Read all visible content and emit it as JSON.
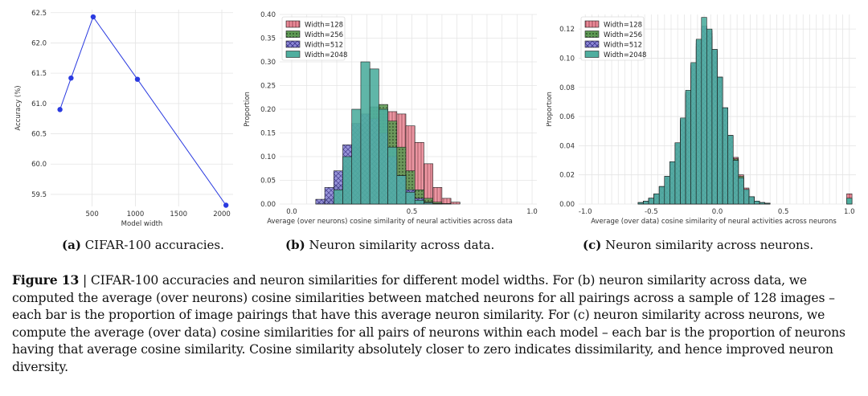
{
  "subcaptions": [
    {
      "tag": "(a)",
      "text": "CIFAR-100 accuracies."
    },
    {
      "tag": "(b)",
      "text": "Neuron similarity across data."
    },
    {
      "tag": "(c)",
      "text": "Neuron similarity across neurons."
    }
  ],
  "figure_caption": {
    "label": "Figure 13",
    "separator": " | ",
    "text": "CIFAR-100 accuracies and neuron similarities for different model widths. For (b) neuron similarity across data, we computed the average (over neurons) cosine similarities between matched neurons for all pairings across a sample of 128 images – each bar is the proportion of image pairings that have this average neuron similarity. For (c) neuron similarity across neurons, we compute the average (over data) cosine similarities for all pairs of neurons within each model – each bar is the proportion of neurons having that average cosine similarity. Cosine similarity absolutely closer to zero indicates dissimilarity, and hence improved neuron diversity."
  },
  "colors": {
    "line": "#2a3ae0",
    "w128": "#e98a97",
    "w256": "#5f9a55",
    "w512": "#8d88d6",
    "w2048": "#4fae9f"
  },
  "chart_data": [
    {
      "type": "line",
      "title": "",
      "xlabel": "Model width",
      "ylabel": "Accuracy (%)",
      "xlim": [
        20,
        2130
      ],
      "ylim": [
        59.3,
        62.55
      ],
      "xticks": [
        "500",
        "1000",
        "1500",
        "2000"
      ],
      "xtick_values": [
        500,
        1000,
        1500,
        2000
      ],
      "yticks": [
        "59.5",
        "60.0",
        "60.5",
        "61.0",
        "61.5",
        "62.0",
        "62.5"
      ],
      "ytick_values": [
        59.5,
        60.0,
        60.5,
        61.0,
        61.5,
        62.0,
        62.5
      ],
      "x": [
        128,
        256,
        512,
        1024,
        2048
      ],
      "y": [
        60.9,
        61.42,
        62.43,
        61.4,
        59.32
      ],
      "grid": true
    },
    {
      "type": "bar",
      "title": "",
      "xlabel": "Average (over neurons) cosine similarity of neural activities across data",
      "ylabel": "Proportion",
      "xlim": [
        -0.05,
        1.02
      ],
      "ylim": [
        0,
        0.4
      ],
      "xticks": [
        "0.0",
        "0.5",
        "1.0"
      ],
      "xtick_values": [
        0.0,
        0.5,
        1.0
      ],
      "yticks": [
        "0.00",
        "0.05",
        "0.10",
        "0.15",
        "0.20",
        "0.25",
        "0.30",
        "0.35",
        "0.40"
      ],
      "ytick_values": [
        0,
        0.05,
        0.1,
        0.15,
        0.2,
        0.25,
        0.3,
        0.35,
        0.4
      ],
      "bin_start": 0.1,
      "bin_width": 0.0375,
      "legend": "top-left",
      "series": [
        {
          "name": "Width=128",
          "values": [
            0,
            0.003,
            0.01,
            0.03,
            0.06,
            0.1,
            0.14,
            0.18,
            0.195,
            0.19,
            0.165,
            0.13,
            0.085,
            0.035,
            0.012,
            0.004,
            0,
            0,
            0.0
          ]
        },
        {
          "name": "Width=256",
          "values": [
            0.003,
            0.012,
            0.04,
            0.08,
            0.12,
            0.17,
            0.205,
            0.21,
            0.175,
            0.12,
            0.07,
            0.03,
            0.012,
            0.004,
            0.001,
            0,
            0,
            0,
            0.0
          ]
        },
        {
          "name": "Width=512",
          "values": [
            0.01,
            0.035,
            0.07,
            0.125,
            0.17,
            0.19,
            0.18,
            0.15,
            0.1,
            0.06,
            0.03,
            0.012,
            0.004,
            0.001,
            0,
            0,
            0,
            0,
            0.0
          ]
        },
        {
          "name": "Width=2048",
          "values": [
            0.0,
            0.0,
            0.03,
            0.1,
            0.2,
            0.3,
            0.285,
            0.2,
            0.12,
            0.06,
            0.025,
            0.008,
            0.003,
            0.001,
            0,
            0,
            0,
            0,
            0.0
          ]
        }
      ],
      "grid": true
    },
    {
      "type": "bar",
      "title": "",
      "xlabel": "Average (over data) cosine similarity of neural activities across neurons",
      "ylabel": "Proportion",
      "xlim": [
        -1.05,
        1.05
      ],
      "ylim": [
        0,
        0.13
      ],
      "xticks": [
        "-1.0",
        "-0.5",
        "0.0",
        "0.5",
        "1.0"
      ],
      "xtick_values": [
        -1.0,
        -0.5,
        0.0,
        0.5,
        1.0
      ],
      "yticks": [
        "0.00",
        "0.02",
        "0.04",
        "0.06",
        "0.08",
        "0.10",
        "0.12"
      ],
      "ytick_values": [
        0,
        0.02,
        0.04,
        0.06,
        0.08,
        0.1,
        0.12
      ],
      "bin_start": -0.6,
      "bin_width": 0.04,
      "legend": "top-left",
      "series": [
        {
          "name": "Width=128",
          "values": [
            0.001,
            0.002,
            0.004,
            0.007,
            0.012,
            0.018,
            0.027,
            0.04,
            0.056,
            0.075,
            0.093,
            0.108,
            0.117,
            0.115,
            0.103,
            0.085,
            0.065,
            0.047,
            0.032,
            0.02,
            0.011,
            0.005,
            0.002,
            0.001,
            0.0005
          ]
        },
        {
          "name": "Width=256",
          "values": [
            0.001,
            0.002,
            0.004,
            0.007,
            0.012,
            0.018,
            0.028,
            0.041,
            0.057,
            0.076,
            0.095,
            0.11,
            0.12,
            0.117,
            0.105,
            0.087,
            0.066,
            0.047,
            0.031,
            0.019,
            0.01,
            0.005,
            0.002,
            0.001,
            0.0005
          ]
        },
        {
          "name": "Width=512",
          "values": [
            0.001,
            0.002,
            0.004,
            0.007,
            0.012,
            0.019,
            0.029,
            0.042,
            0.058,
            0.077,
            0.096,
            0.112,
            0.122,
            0.119,
            0.106,
            0.087,
            0.066,
            0.047,
            0.03,
            0.018,
            0.01,
            0.005,
            0.002,
            0.001,
            0.0005
          ]
        },
        {
          "name": "Width=2048",
          "values": [
            0.001,
            0.002,
            0.004,
            0.007,
            0.012,
            0.019,
            0.029,
            0.042,
            0.059,
            0.078,
            0.097,
            0.113,
            0.128,
            0.12,
            0.106,
            0.087,
            0.066,
            0.047,
            0.03,
            0.018,
            0.01,
            0.005,
            0.002,
            0.001,
            0.0005
          ]
        }
      ],
      "outlier": {
        "x": 1.0,
        "values": [
          0.007,
          0.004
        ]
      },
      "grid": true
    }
  ]
}
